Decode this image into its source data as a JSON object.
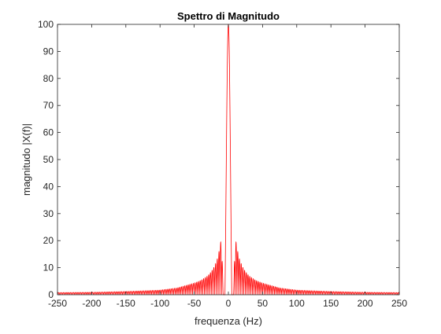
{
  "chart_data": {
    "type": "line",
    "title": "Spettro di Magnitudo",
    "xlabel": "frequenza (Hz)",
    "ylabel": "magnitudo |X(f)|",
    "xlim": [
      -250,
      250
    ],
    "ylim": [
      0,
      100
    ],
    "xticks": [
      -250,
      -200,
      -150,
      -100,
      -50,
      0,
      50,
      100,
      150,
      200,
      250
    ],
    "yticks": [
      0,
      10,
      20,
      30,
      40,
      50,
      60,
      70,
      80,
      90,
      100
    ],
    "grid": false,
    "series": [
      {
        "color": "#ff0000",
        "x": [
          -250,
          -200,
          -150,
          -100,
          -75,
          -50,
          -40,
          -30,
          -25,
          -20,
          -15,
          -10,
          -7.5,
          -5,
          0,
          5,
          7.5,
          10,
          15,
          20,
          25,
          30,
          40,
          50,
          75,
          100,
          150,
          200,
          250
        ],
        "y": [
          0.8,
          0.9,
          1.2,
          1.7,
          2.5,
          4.3,
          5.3,
          7.0,
          8.5,
          10.6,
          14.1,
          21.2,
          0,
          0,
          100,
          0,
          0,
          21.2,
          14.1,
          10.6,
          8.5,
          7.0,
          5.3,
          4.3,
          2.5,
          1.7,
          1.2,
          0.9,
          0.8
        ]
      }
    ]
  }
}
